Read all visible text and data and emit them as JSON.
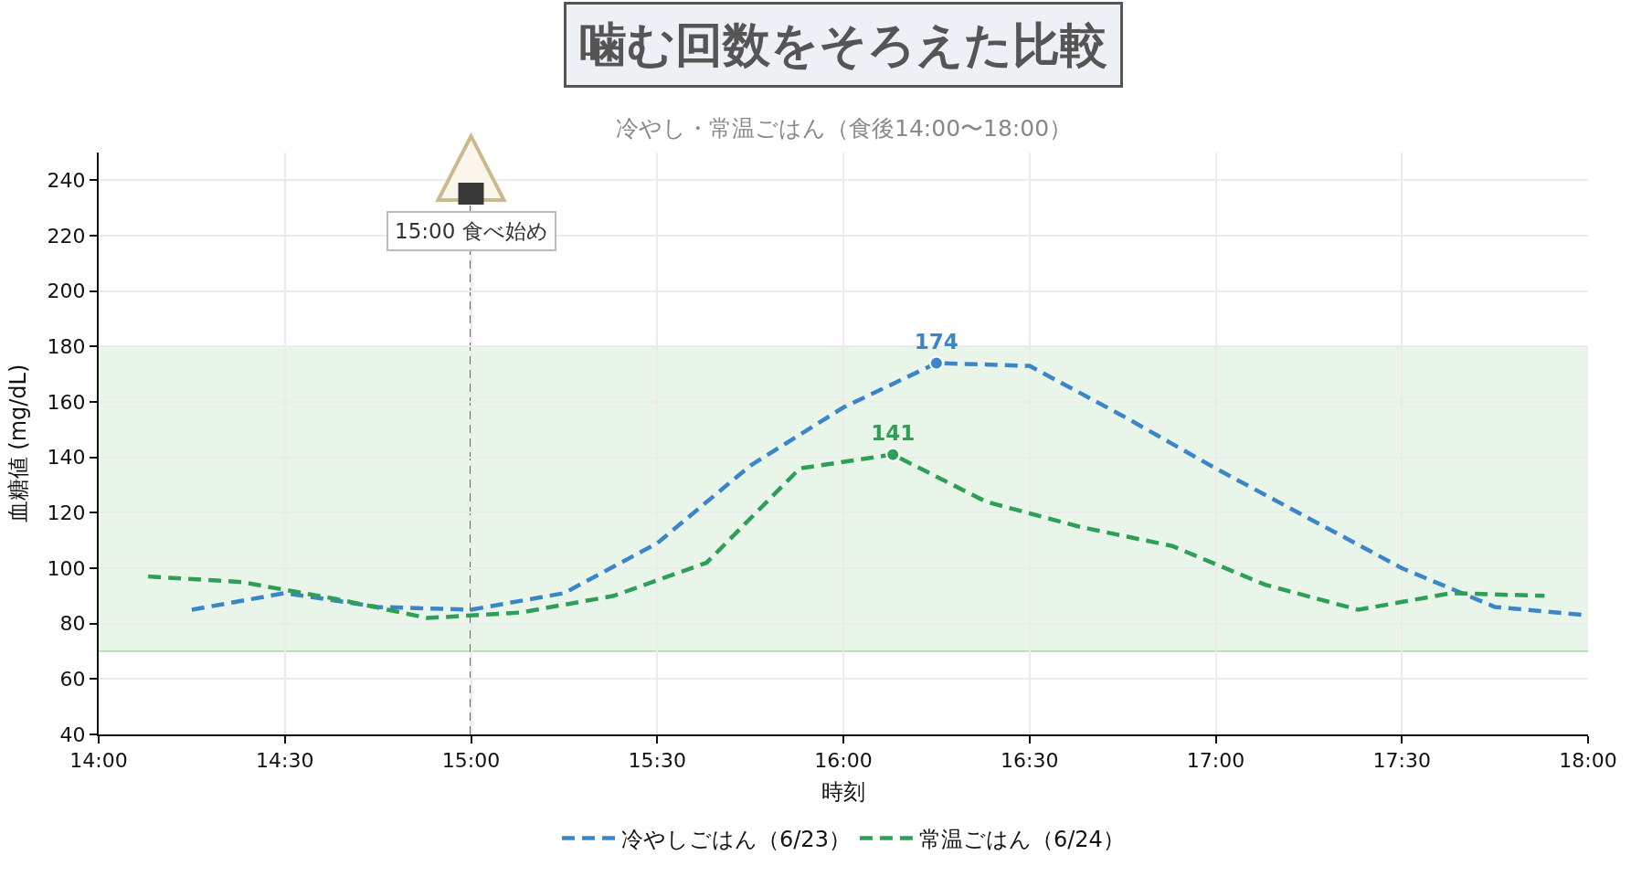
{
  "chart_data": {
    "type": "line",
    "title": "噛む回数をそろえた比較",
    "subtitle": "冷やし・常温ごはん（食後14:00〜18:00）",
    "xlabel": "時刻",
    "ylabel": "血糖値 (mg/dL)",
    "xlim": [
      14,
      18
    ],
    "xticks": [
      {
        "value": 14,
        "label": "14:00"
      },
      {
        "value": 14.5,
        "label": "14:30"
      },
      {
        "value": 15,
        "label": "15:00"
      },
      {
        "value": 15.5,
        "label": "15:30"
      },
      {
        "value": 16,
        "label": "16:00"
      },
      {
        "value": 16.5,
        "label": "16:30"
      },
      {
        "value": 17,
        "label": "17:00"
      },
      {
        "value": 17.5,
        "label": "17:30"
      },
      {
        "value": 18,
        "label": "18:00"
      }
    ],
    "ylim": [
      40,
      250
    ],
    "yticks": [
      40,
      60,
      80,
      100,
      120,
      140,
      160,
      180,
      200,
      220,
      240
    ],
    "grid": true,
    "legend": "bottom",
    "line_style": "dashed",
    "series": [
      {
        "name": "冷やしごはん（6/23）",
        "color": "#3a86c8",
        "x": [
          14.25,
          14.5,
          14.75,
          15,
          15.25,
          15.5,
          15.75,
          16,
          16.25,
          16.5,
          16.75,
          17,
          17.25,
          17.5,
          17.75,
          18
        ],
        "values": [
          85,
          91,
          86,
          85,
          91,
          109,
          137,
          158,
          174,
          173,
          155,
          136,
          118,
          100,
          86,
          83
        ],
        "value_labels": [
          null,
          null,
          null,
          null,
          null,
          null,
          null,
          null,
          "174",
          null,
          null,
          null,
          null,
          null,
          null,
          null
        ]
      },
      {
        "name": "常温ごはん（6/24）",
        "color": "#2e9f57",
        "x": [
          14.133,
          14.383,
          14.633,
          14.883,
          15.133,
          15.383,
          15.633,
          15.883,
          16.133,
          16.383,
          16.633,
          16.883,
          17.133,
          17.383,
          17.633,
          17.883
        ],
        "values": [
          97,
          95,
          89,
          82,
          84,
          90,
          102,
          136,
          141,
          124,
          115,
          108,
          94,
          85,
          91,
          90
        ],
        "value_labels": [
          null,
          null,
          null,
          null,
          null,
          null,
          null,
          null,
          "141",
          null,
          null,
          null,
          null,
          null,
          null,
          null
        ]
      }
    ],
    "bands": [
      {
        "axis": "y",
        "from": 70,
        "to": 180,
        "color": "#4caf50"
      }
    ],
    "ref_lines": [
      {
        "axis": "x",
        "value": 15,
        "label": "15:00 食べ始め",
        "color": "#333333",
        "line_style": "dashed"
      }
    ]
  }
}
